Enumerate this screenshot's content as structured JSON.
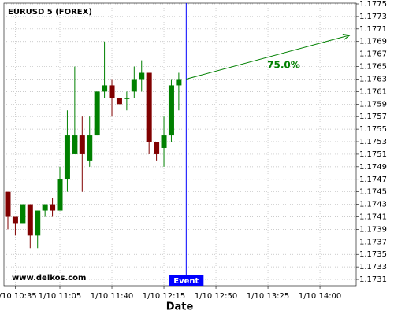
{
  "chart_data": {
    "type": "candlestick",
    "title": "EURUSD 5 (FOREX)",
    "watermark": "www.delkos.com",
    "x_label": "Date",
    "x": [
      "1/10 10:30",
      "1/10 10:35",
      "1/10 10:40",
      "1/10 10:45",
      "1/10 10:50",
      "1/10 10:55",
      "1/10 11:00",
      "1/10 11:05",
      "1/10 11:10",
      "1/10 11:15",
      "1/10 11:20",
      "1/10 11:25",
      "1/10 11:30",
      "1/10 11:35",
      "1/10 11:40",
      "1/10 11:45",
      "1/10 11:50",
      "1/10 11:55",
      "1/10 12:00",
      "1/10 12:05",
      "1/10 12:10",
      "1/10 12:15",
      "1/10 12:20",
      "1/10 12:25"
    ],
    "open": [
      1.1745,
      1.1741,
      1.174,
      1.1743,
      1.1738,
      1.1742,
      1.1743,
      1.1742,
      1.1747,
      1.1751,
      1.1754,
      1.175,
      1.1754,
      1.1761,
      1.1762,
      1.176,
      1.176,
      1.1761,
      1.1763,
      1.1764,
      1.1753,
      1.1752,
      1.1754,
      1.1762
    ],
    "high": [
      1.1745,
      1.1741,
      1.1743,
      1.1743,
      1.1742,
      1.1743,
      1.1744,
      1.1749,
      1.1758,
      1.1765,
      1.1757,
      1.1757,
      1.1761,
      1.1769,
      1.1763,
      1.176,
      1.1761,
      1.1765,
      1.1766,
      1.1764,
      1.1753,
      1.1757,
      1.1763,
      1.1764
    ],
    "low": [
      1.1739,
      1.1738,
      1.174,
      1.1736,
      1.1736,
      1.1741,
      1.1741,
      1.1742,
      1.1745,
      1.1751,
      1.1745,
      1.1749,
      1.1754,
      1.176,
      1.1757,
      1.1759,
      1.1758,
      1.176,
      1.1761,
      1.1751,
      1.175,
      1.1749,
      1.1753,
      1.1758
    ],
    "close": [
      1.1741,
      1.174,
      1.1743,
      1.1738,
      1.1742,
      1.1743,
      1.1742,
      1.1747,
      1.1754,
      1.1754,
      1.1751,
      1.1754,
      1.1761,
      1.1762,
      1.176,
      1.1759,
      1.176,
      1.1763,
      1.1764,
      1.1753,
      1.1751,
      1.1754,
      1.1762,
      1.1763
    ],
    "up_color": "#008000",
    "down_color": "#800000",
    "ylim": [
      1.173,
      1.1775
    ],
    "yticks": [
      1.1775,
      1.1773,
      1.1771,
      1.1769,
      1.1767,
      1.1765,
      1.1763,
      1.1761,
      1.1759,
      1.1757,
      1.1755,
      1.1753,
      1.1751,
      1.1749,
      1.1747,
      1.1745,
      1.1743,
      1.1741,
      1.1739,
      1.1737,
      1.1735,
      1.1733,
      1.1731
    ],
    "xticks": [
      "1/10 10:35",
      "1/10 11:05",
      "1/10 11:40",
      "1/10 12:15",
      "1/10 12:50",
      "1/10 13:25",
      "1/10 14:00"
    ],
    "grid": true,
    "event": {
      "label": "Event",
      "x": "1/10 12:30",
      "color": "#0000ff"
    },
    "forecast": {
      "label": "75.0%",
      "x": [
        "1/10 12:30",
        "1/10 14:20"
      ],
      "y": [
        1.1763,
        1.177
      ],
      "color": "#008000"
    }
  }
}
